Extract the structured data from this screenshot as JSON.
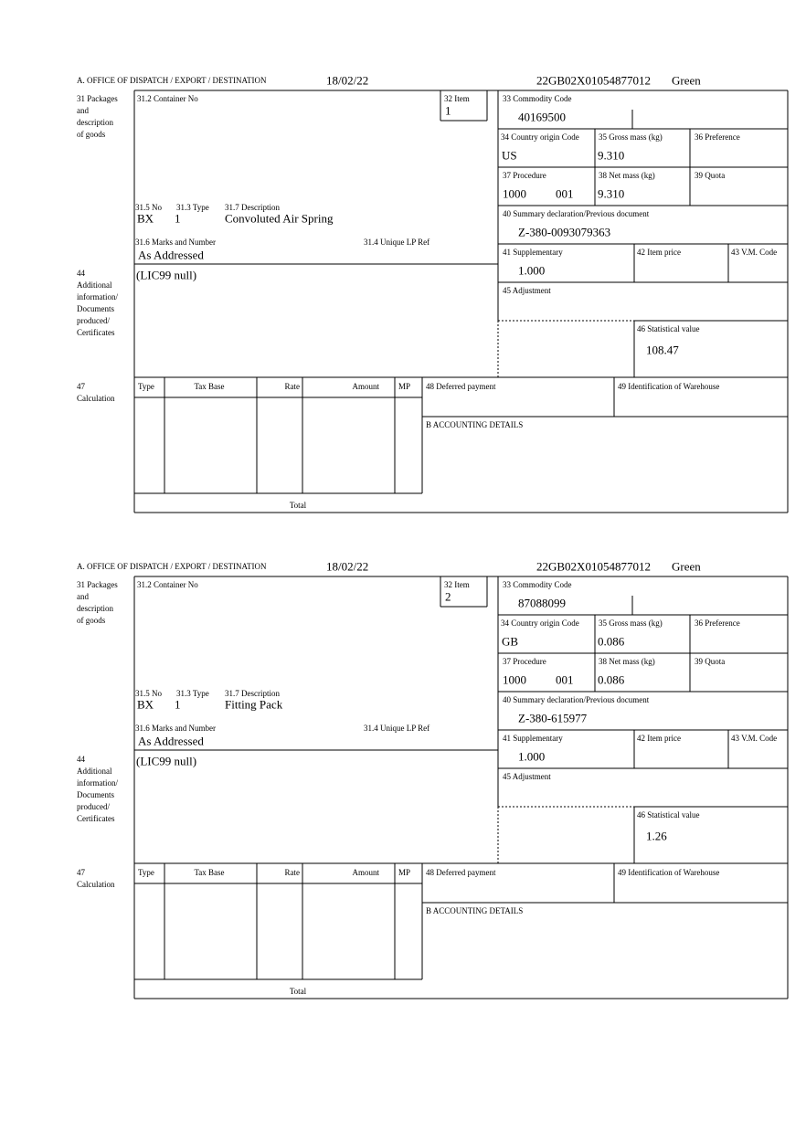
{
  "labels": {
    "office": "A. OFFICE OF DISPATCH / EXPORT / DESTINATION",
    "box31": [
      "31 Packages",
      "and",
      "description",
      "of goods"
    ],
    "box44": [
      "44",
      "Additional",
      "information/",
      "Documents",
      "produced/",
      "Certificates"
    ],
    "box47": [
      "47",
      "Calculation"
    ],
    "container": "31.2 Container No",
    "item": "32 Item",
    "commodity": "33 Commodity Code",
    "origin": "34 Country origin Code",
    "gross": "35 Gross mass (kg)",
    "preference": "36 Preference",
    "procedure": "37 Procedure",
    "net": "38 Net mass (kg)",
    "quota": "39 Quota",
    "summary": "40 Summary declaration/Previous document",
    "no": "31.5 No",
    "type": "31.3 Type",
    "description": "31.7 Description",
    "marks": "31.6 Marks and Number",
    "unique": "31.4 Unique LP Ref",
    "supplementary": "41 Supplementary",
    "item_price": "42 Item price",
    "vm_code": "43 V.M. Code",
    "adjustment": "45 Adjustment",
    "statistical": "46 Statistical value",
    "calc_type": "Type",
    "tax_base": "Tax Base",
    "rate": "Rate",
    "amount": "Amount",
    "mp": "MP",
    "total": "Total",
    "deferred": "48 Deferred payment",
    "warehouse": "49 Identification of Warehouse",
    "accounting": "B ACCOUNTING DETAILS"
  },
  "forms": [
    {
      "date": "18/02/22",
      "reference": "22GB02X01054877012",
      "status": "Green",
      "item": "1",
      "commodity_code": "40169500",
      "origin": "US",
      "gross_mass": "9.310",
      "procedure": "1000",
      "procedure_extra": "001",
      "net_mass": "9.310",
      "previous_document": "Z-380-0093079363",
      "no": "BX",
      "type": "1",
      "description": "Convoluted Air Spring",
      "marks": "As Addressed",
      "additional_info": "(LIC99 null)",
      "supplementary": "1.000",
      "statistical_value": "108.47"
    },
    {
      "date": "18/02/22",
      "reference": "22GB02X01054877012",
      "status": "Green",
      "item": "2",
      "commodity_code": "87088099",
      "origin": "GB",
      "gross_mass": "0.086",
      "procedure": "1000",
      "procedure_extra": "001",
      "net_mass": "0.086",
      "previous_document": "Z-380-615977",
      "no": "BX",
      "type": "1",
      "description": "Fitting Pack",
      "marks": "As Addressed",
      "additional_info": "(LIC99 null)",
      "supplementary": "1.000",
      "statistical_value": "1.26"
    }
  ]
}
